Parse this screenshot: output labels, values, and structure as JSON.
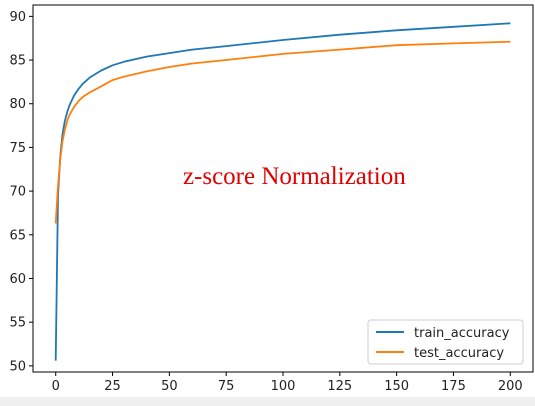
{
  "chart_data": {
    "type": "line",
    "title": "",
    "xlabel": "",
    "ylabel": "",
    "xlim": [
      -10,
      210
    ],
    "ylim": [
      49.3,
      91.3
    ],
    "xticks": [
      0,
      25,
      50,
      75,
      100,
      125,
      150,
      175,
      200
    ],
    "yticks": [
      50,
      55,
      60,
      65,
      70,
      75,
      80,
      85,
      90
    ],
    "grid": false,
    "legend_position": "bottom-right",
    "annotation": {
      "text": "z-score Normalization",
      "color": "#e00000",
      "x": 105,
      "y": 70.8
    },
    "series": [
      {
        "name": "train_accuracy",
        "color": "#1f77b4",
        "x": [
          0,
          1,
          2,
          3,
          4,
          5,
          6,
          8,
          10,
          12,
          15,
          20,
          25,
          30,
          40,
          50,
          60,
          75,
          100,
          125,
          150,
          175,
          200
        ],
        "y": [
          50.6,
          69.5,
          74.0,
          76.5,
          78.0,
          79.0,
          79.8,
          80.9,
          81.7,
          82.3,
          83.0,
          83.8,
          84.4,
          84.8,
          85.4,
          85.8,
          86.2,
          86.6,
          87.3,
          87.9,
          88.4,
          88.8,
          89.2
        ]
      },
      {
        "name": "test_accuracy",
        "color": "#ff7f0e",
        "x": [
          0,
          1,
          2,
          3,
          4,
          5,
          6,
          8,
          10,
          12,
          15,
          20,
          25,
          30,
          40,
          50,
          60,
          75,
          100,
          125,
          150,
          175,
          200
        ],
        "y": [
          66.3,
          70.6,
          73.7,
          75.7,
          77.0,
          78.0,
          78.7,
          79.6,
          80.3,
          80.8,
          81.3,
          82.0,
          82.7,
          83.1,
          83.7,
          84.2,
          84.6,
          85.0,
          85.7,
          86.2,
          86.7,
          86.9,
          87.1
        ]
      }
    ]
  }
}
